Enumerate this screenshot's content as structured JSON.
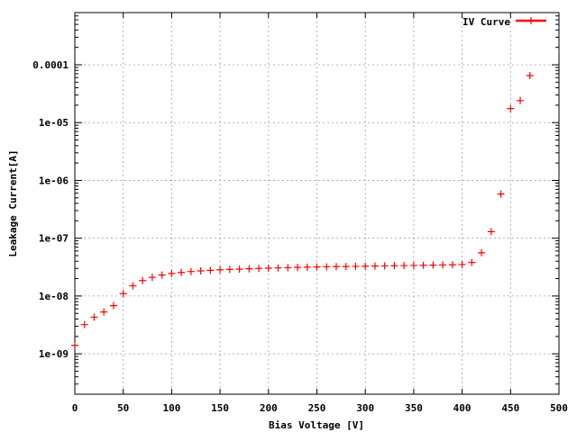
{
  "chart_data": {
    "type": "scatter",
    "title": "",
    "xlabel": "Bias Voltage [V]",
    "ylabel": "Leakage Current[A]",
    "xlim": [
      0,
      500
    ],
    "ylim": [
      2e-10,
      0.0008
    ],
    "yscale": "log",
    "grid": true,
    "legend_position": "top-right",
    "x_ticks": [
      "0",
      "50",
      "100",
      "150",
      "200",
      "250",
      "300",
      "350",
      "400",
      "450",
      "500"
    ],
    "y_ticks": [
      "1e-09",
      "1e-08",
      "1e-07",
      "1e-06",
      "1e-05",
      "0.0001"
    ],
    "series": [
      {
        "name": "IV Curve",
        "color": "#ff0000",
        "marker": "plus",
        "points": [
          [
            0,
            1.4e-09
          ],
          [
            10,
            3.2e-09
          ],
          [
            20,
            4.3e-09
          ],
          [
            30,
            5.3e-09
          ],
          [
            40,
            6.8e-09
          ],
          [
            50,
            1.1e-08
          ],
          [
            60,
            1.5e-08
          ],
          [
            70,
            1.85e-08
          ],
          [
            80,
            2.1e-08
          ],
          [
            90,
            2.3e-08
          ],
          [
            100,
            2.45e-08
          ],
          [
            110,
            2.55e-08
          ],
          [
            120,
            2.65e-08
          ],
          [
            130,
            2.72e-08
          ],
          [
            140,
            2.78e-08
          ],
          [
            150,
            2.84e-08
          ],
          [
            160,
            2.88e-08
          ],
          [
            170,
            2.92e-08
          ],
          [
            180,
            2.96e-08
          ],
          [
            190,
            3e-08
          ],
          [
            200,
            3.03e-08
          ],
          [
            210,
            3.06e-08
          ],
          [
            220,
            3.09e-08
          ],
          [
            230,
            3.12e-08
          ],
          [
            240,
            3.15e-08
          ],
          [
            250,
            3.18e-08
          ],
          [
            260,
            3.2e-08
          ],
          [
            270,
            3.22e-08
          ],
          [
            280,
            3.24e-08
          ],
          [
            290,
            3.26e-08
          ],
          [
            300,
            3.28e-08
          ],
          [
            310,
            3.3e-08
          ],
          [
            320,
            3.32e-08
          ],
          [
            330,
            3.34e-08
          ],
          [
            340,
            3.36e-08
          ],
          [
            350,
            3.38e-08
          ],
          [
            360,
            3.4e-08
          ],
          [
            370,
            3.42e-08
          ],
          [
            380,
            3.44e-08
          ],
          [
            390,
            3.46e-08
          ],
          [
            400,
            3.5e-08
          ],
          [
            410,
            3.8e-08
          ],
          [
            420,
            5.6e-08
          ],
          [
            430,
            1.3e-07
          ],
          [
            440,
            5.8e-07
          ],
          [
            450,
            1.75e-05
          ],
          [
            460,
            2.4e-05
          ],
          [
            470,
            6.5e-05
          ]
        ]
      }
    ]
  }
}
